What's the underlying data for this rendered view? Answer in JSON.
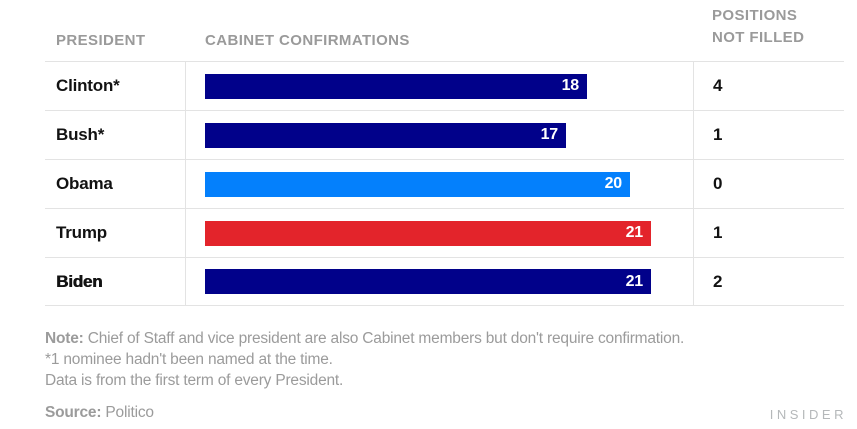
{
  "header": {
    "president": "PRESIDENT",
    "confirmations": "CABINET CONFIRMATIONS",
    "not_filled_line1": "POSITIONS",
    "not_filled_line2": "NOT FILLED"
  },
  "chart_data": {
    "type": "bar",
    "orientation": "horizontal",
    "categories": [
      "Clinton*",
      "Bush*",
      "Obama",
      "Trump",
      "Biden"
    ],
    "series": [
      {
        "name": "Cabinet confirmations",
        "values": [
          18,
          17,
          20,
          21,
          21
        ]
      },
      {
        "name": "Positions not filled",
        "values": [
          4,
          1,
          0,
          1,
          2
        ]
      }
    ],
    "xlim": [
      0,
      21
    ],
    "grid": false,
    "legend": "none",
    "rows": [
      {
        "president": "Clinton*",
        "confirmations": 18,
        "not_filled": 4,
        "color": "#01018a",
        "emphasis": false
      },
      {
        "president": "Bush*",
        "confirmations": 17,
        "not_filled": 1,
        "color": "#01018a",
        "emphasis": false
      },
      {
        "president": "Obama",
        "confirmations": 20,
        "not_filled": 0,
        "color": "#0480fc",
        "emphasis": false
      },
      {
        "president": "Trump",
        "confirmations": 21,
        "not_filled": 1,
        "color": "#e3242b",
        "emphasis": false
      },
      {
        "president": "Biden",
        "confirmations": 21,
        "not_filled": 2,
        "color": "#01018a",
        "emphasis": true
      }
    ]
  },
  "colors": {
    "navy": "#01018a",
    "azure": "#0480fc",
    "red": "#e3242b",
    "header_gray": "#9a9a9a",
    "note_gray": "#9b9b9b",
    "divider_gray": "#e3e3e3",
    "brand_gray": "#b5b8ba",
    "bar_label": "#ffffff",
    "text_black": "#121212"
  },
  "notes": {
    "note_label": "Note:",
    "note_text": " Chief of Staff and vice president are also Cabinet members but don't require confirmation.",
    "line2": "*1 nominee hadn't been named at the time.",
    "line3": "Data is from the first term of every President."
  },
  "source": {
    "label": "Source:",
    "value": " Politico"
  },
  "brand": "INSIDER"
}
